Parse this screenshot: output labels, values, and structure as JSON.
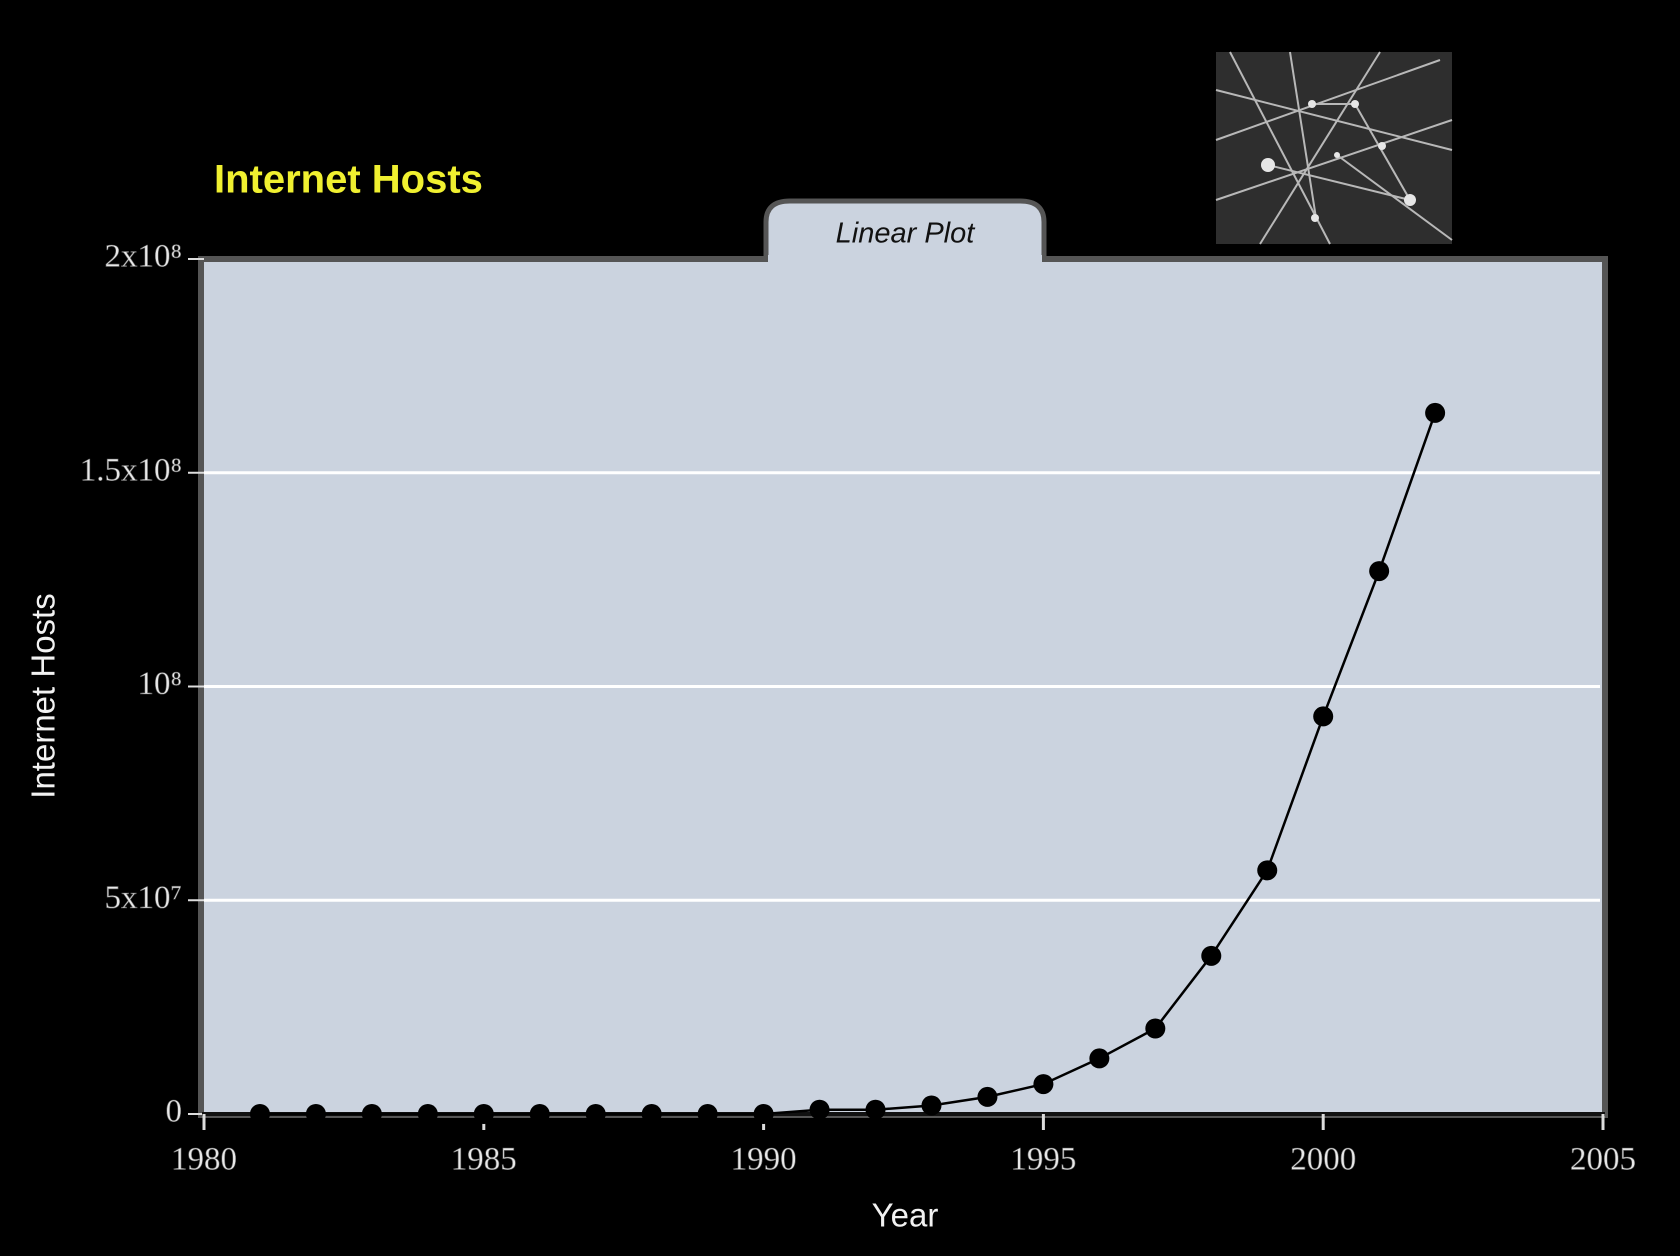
{
  "chart_data": {
    "type": "line",
    "title": "Internet Hosts",
    "subtitle": "Linear Plot",
    "x_label": "Year",
    "y_label": "Internet Hosts",
    "x": [
      1981,
      1982,
      1983,
      1984,
      1985,
      1986,
      1987,
      1988,
      1989,
      1990,
      1991,
      1992,
      1993,
      1994,
      1995,
      1996,
      1997,
      1998,
      1999,
      2000,
      2001,
      2002
    ],
    "series": [
      {
        "name": "Internet Hosts",
        "color": "#000000",
        "values": [
          0,
          0,
          0,
          0,
          0,
          0,
          0,
          0,
          0,
          0,
          1000000,
          1000000,
          2000000,
          4000000,
          7000000,
          13000000,
          20000000,
          37000000,
          57000000,
          93000000,
          127000000,
          164000000
        ]
      }
    ],
    "xlim": [
      1980,
      2005
    ],
    "xticks": [
      1980,
      1985,
      1990,
      1995,
      2000,
      2005
    ],
    "ylim": [
      0,
      200000000
    ],
    "yticks": [
      0,
      {
        "value": 50000000,
        "label": "5x10⁷"
      },
      {
        "value": 100000000,
        "label": "10⁸"
      },
      {
        "value": 150000000,
        "label": "1.5x10⁸"
      },
      {
        "value": 200000000,
        "label": "2x10⁸"
      }
    ],
    "grid": true
  }
}
